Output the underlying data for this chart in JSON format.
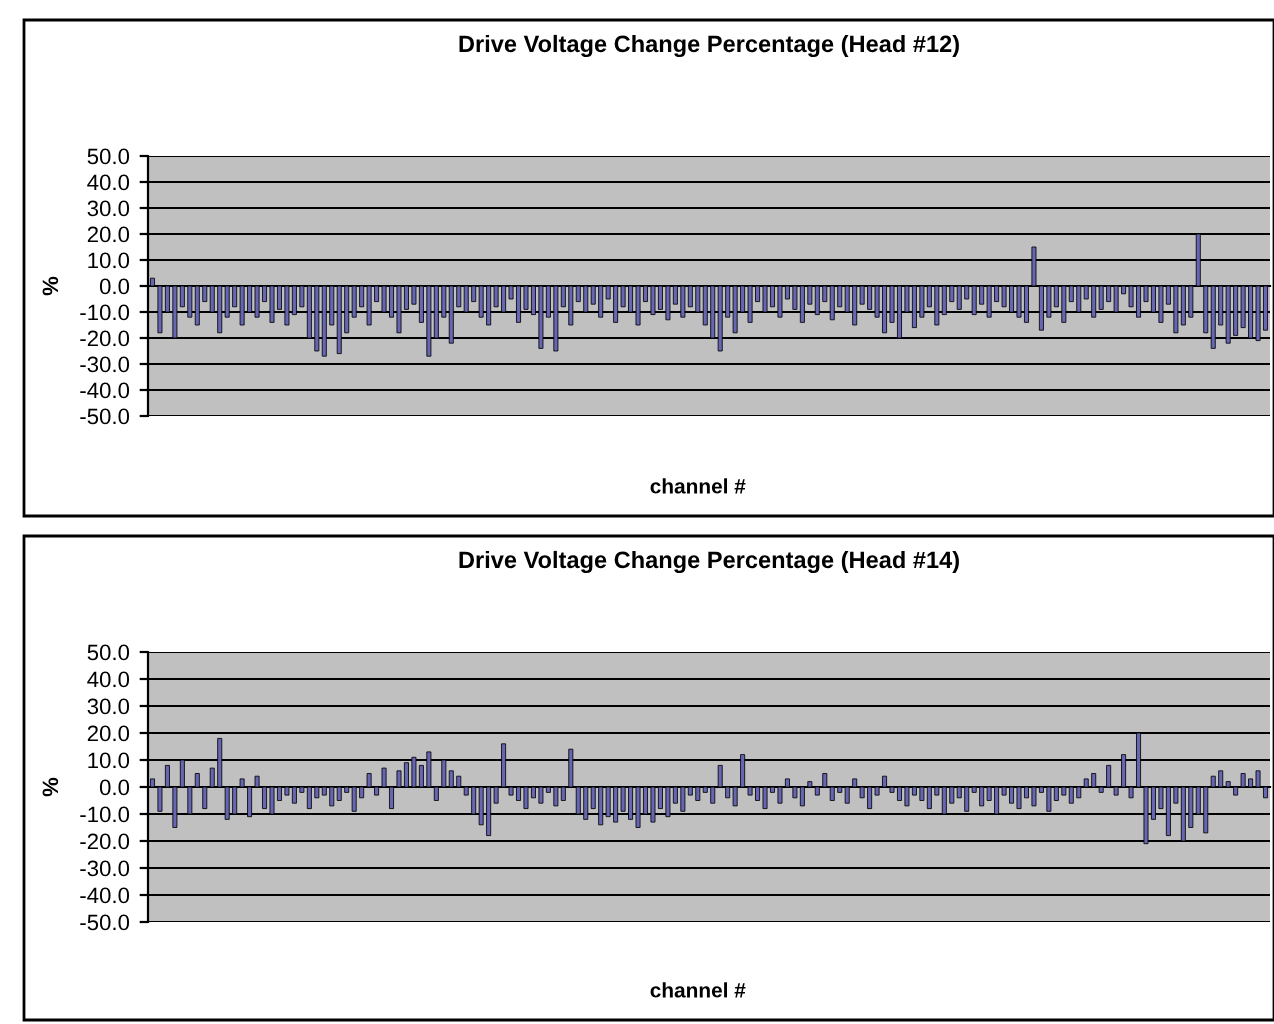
{
  "chart_data": [
    {
      "type": "bar",
      "title": "Drive Voltage Change Percentage (Head #12)",
      "xlabel": "channel #",
      "ylabel": "%",
      "color": "#6666b3",
      "grid": "y",
      "ylim": [
        -50,
        50
      ],
      "yticks": [
        {
          "value": 50,
          "label": "50.0"
        },
        {
          "value": 40,
          "label": "40.0"
        },
        {
          "value": 30,
          "label": "30.0"
        },
        {
          "value": 20,
          "label": "20.0"
        },
        {
          "value": 10,
          "label": "10.0"
        },
        {
          "value": 0,
          "label": "0.0"
        },
        {
          "value": -10,
          "label": "-10.0"
        },
        {
          "value": -20,
          "label": "-20.0"
        },
        {
          "value": -30,
          "label": "-30.0"
        },
        {
          "value": -40,
          "label": "-40.0"
        },
        {
          "value": -50,
          "label": "-50.0"
        }
      ],
      "categories": [
        null,
        null,
        null,
        null,
        null,
        null,
        null,
        null,
        null,
        null,
        null,
        null,
        null,
        null,
        null,
        null,
        null,
        null,
        null,
        null,
        null,
        null,
        null,
        null,
        null,
        null,
        null,
        null,
        null,
        null,
        null,
        null,
        null,
        null,
        null,
        null,
        null,
        null,
        null,
        null,
        null,
        null,
        null,
        null,
        null,
        null,
        null,
        null,
        null,
        null,
        null,
        null,
        null,
        null,
        null,
        null,
        null,
        null,
        null,
        null,
        null,
        null,
        null,
        null,
        null,
        null,
        null,
        null,
        null,
        null,
        null,
        null,
        null,
        null,
        null,
        null,
        null,
        null,
        null,
        null,
        null,
        null,
        null,
        null,
        null,
        null,
        null,
        null,
        null,
        null,
        null,
        null,
        null,
        null,
        null,
        null,
        null,
        null,
        null,
        null,
        null,
        null,
        null,
        null,
        null,
        null,
        null,
        null,
        null,
        null,
        null,
        null,
        null,
        null,
        null,
        null,
        null,
        null,
        null,
        null,
        null,
        null,
        null,
        null,
        null,
        null,
        null,
        null,
        null,
        null,
        null,
        null,
        null,
        null,
        null,
        null,
        null,
        null,
        null,
        null,
        null,
        null,
        null,
        null,
        null,
        null,
        null,
        null,
        null,
        null
      ],
      "values": [
        3,
        -18,
        -10,
        -20,
        -8,
        -12,
        -15,
        -6,
        -10,
        -18,
        -12,
        -8,
        -15,
        -10,
        -12,
        -6,
        -14,
        -9,
        -15,
        -11,
        -8,
        -20,
        -25,
        -27,
        -15,
        -26,
        -18,
        -12,
        -8,
        -15,
        -6,
        -10,
        -12,
        -18,
        -9,
        -7,
        -14,
        -27,
        -20,
        -12,
        -22,
        -8,
        -10,
        -6,
        -12,
        -15,
        -8,
        -10,
        -5,
        -14,
        -9,
        -11,
        -24,
        -12,
        -25,
        -8,
        -15,
        -6,
        -10,
        -7,
        -12,
        -5,
        -14,
        -8,
        -10,
        -15,
        -6,
        -11,
        -9,
        -13,
        -7,
        -12,
        -8,
        -10,
        -15,
        -20,
        -25,
        -12,
        -18,
        -10,
        -14,
        -6,
        -10,
        -8,
        -12,
        -5,
        -9,
        -14,
        -7,
        -11,
        -6,
        -13,
        -8,
        -10,
        -15,
        -7,
        -9,
        -12,
        -18,
        -14,
        -20,
        -10,
        -16,
        -12,
        -8,
        -15,
        -11,
        -6,
        -9,
        -5,
        -11,
        -7,
        -12,
        -6,
        -8,
        -10,
        -12,
        -14,
        15,
        -17,
        -12,
        -8,
        -14,
        -6,
        -10,
        -5,
        -12,
        -9,
        -6,
        -10,
        -3,
        -8,
        -12,
        -6,
        -10,
        -14,
        -7,
        -18,
        -15,
        -12,
        20,
        -18,
        -24,
        -15,
        -22,
        -19,
        -16,
        -20,
        -21,
        -17
      ]
    },
    {
      "type": "bar",
      "title": "Drive Voltage Change Percentage (Head #14)",
      "xlabel": "channel #",
      "ylabel": "%",
      "color": "#6666b3",
      "grid": "y",
      "ylim": [
        -50,
        50
      ],
      "yticks": [
        {
          "value": 50,
          "label": "50.0"
        },
        {
          "value": 40,
          "label": "40.0"
        },
        {
          "value": 30,
          "label": "30.0"
        },
        {
          "value": 20,
          "label": "20.0"
        },
        {
          "value": 10,
          "label": "10.0"
        },
        {
          "value": 0,
          "label": "0.0"
        },
        {
          "value": -10,
          "label": "-10.0"
        },
        {
          "value": -20,
          "label": "-20.0"
        },
        {
          "value": -30,
          "label": "-30.0"
        },
        {
          "value": -40,
          "label": "-40.0"
        },
        {
          "value": -50,
          "label": "-50.0"
        }
      ],
      "categories": [
        null,
        null,
        null,
        null,
        null,
        null,
        null,
        null,
        null,
        null,
        null,
        null,
        null,
        null,
        null,
        null,
        null,
        null,
        null,
        null,
        null,
        null,
        null,
        null,
        null,
        null,
        null,
        null,
        null,
        null,
        null,
        null,
        null,
        null,
        null,
        null,
        null,
        null,
        null,
        null,
        null,
        null,
        null,
        null,
        null,
        null,
        null,
        null,
        null,
        null,
        null,
        null,
        null,
        null,
        null,
        null,
        null,
        null,
        null,
        null,
        null,
        null,
        null,
        null,
        null,
        null,
        null,
        null,
        null,
        null,
        null,
        null,
        null,
        null,
        null,
        null,
        null,
        null,
        null,
        null,
        null,
        null,
        null,
        null,
        null,
        null,
        null,
        null,
        null,
        null,
        null,
        null,
        null,
        null,
        null,
        null,
        null,
        null,
        null,
        null,
        null,
        null,
        null,
        null,
        null,
        null,
        null,
        null,
        null,
        null,
        null,
        null,
        null,
        null,
        null,
        null,
        null,
        null,
        null,
        null,
        null,
        null,
        null,
        null,
        null,
        null,
        null,
        null,
        null,
        null,
        null,
        null,
        null,
        null,
        null,
        null,
        null,
        null,
        null,
        null,
        null,
        null,
        null,
        null,
        null,
        null,
        null,
        null,
        null,
        null
      ],
      "values": [
        3,
        -9,
        8,
        -15,
        10,
        -10,
        5,
        -8,
        7,
        18,
        -12,
        -10,
        3,
        -11,
        4,
        -8,
        -10,
        -5,
        -3,
        -6,
        -2,
        -8,
        -4,
        -3,
        -7,
        -5,
        -2,
        -9,
        -4,
        5,
        -3,
        7,
        -8,
        6,
        9,
        11,
        8,
        13,
        -5,
        10,
        6,
        4,
        -3,
        -10,
        -14,
        -18,
        -6,
        16,
        -3,
        -5,
        -8,
        -4,
        -6,
        -2,
        -7,
        -5,
        14,
        -10,
        -12,
        -8,
        -14,
        -11,
        -13,
        -9,
        -12,
        -15,
        -10,
        -13,
        -8,
        -11,
        -6,
        -9,
        -3,
        -5,
        -2,
        -6,
        8,
        -4,
        -7,
        12,
        -3,
        -5,
        -8,
        -2,
        -6,
        3,
        -4,
        -7,
        2,
        -3,
        5,
        -5,
        -2,
        -6,
        3,
        -4,
        -8,
        -3,
        4,
        -2,
        -5,
        -7,
        -3,
        -5,
        -8,
        -3,
        -10,
        -6,
        -4,
        -9,
        -2,
        -7,
        -5,
        -10,
        -3,
        -6,
        -8,
        -4,
        -7,
        -2,
        -9,
        -5,
        -3,
        -6,
        -4,
        3,
        5,
        -2,
        8,
        -3,
        12,
        -4,
        20,
        -21,
        -12,
        -8,
        -18,
        -6,
        -20,
        -15,
        -10,
        -17,
        4,
        6,
        2,
        -3,
        5,
        3,
        6,
        -4
      ]
    }
  ]
}
